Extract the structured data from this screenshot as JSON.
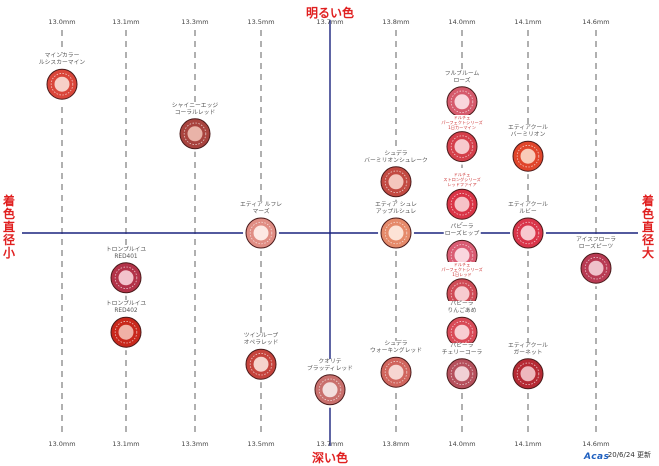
{
  "axes": {
    "top": "明るい色",
    "bottom": "深い色",
    "left": "着色直径 小",
    "right": "着色直径 大"
  },
  "footer": {
    "date": "20/6/24 更新",
    "brand": "Acas"
  },
  "colors": {
    "axis": "#1a237e",
    "accent": "#e02020",
    "dashed": "#b0b0b0"
  },
  "chart_data": {
    "type": "scatter",
    "title": "",
    "xlabel": "着色直径",
    "ylabel": "明るい色 / 深い色",
    "x_ticks": [
      "13.0mm",
      "13.1mm",
      "13.3mm",
      "13.5mm",
      "13.7mm",
      "13.8mm",
      "14.0mm",
      "14.1mm",
      "14.6mm"
    ],
    "points": [
      {
        "name": "マインカラー\nルシスカーマイン",
        "x": "13.0mm",
        "level": 0.93,
        "ring": "#d9463a",
        "center": "#f7d0c8"
      },
      {
        "name": "シャイニーエッジ\nコーラルレッド",
        "x": "13.3mm",
        "level": 0.62,
        "ring": "#a8433e",
        "center": "#e9b3a8"
      },
      {
        "name": "エティア ルフレ\nマーズ",
        "x": "13.5mm",
        "level": 0.0,
        "ring": "#e08d84",
        "center": "#fde8e4"
      },
      {
        "name": "トロンプルイユ\nRED401",
        "x": "13.1mm",
        "level": -0.28,
        "ring": "#b23248",
        "center": "#f2c3cb"
      },
      {
        "name": "トロンプルイユ\nRED402",
        "x": "13.1mm",
        "level": -0.62,
        "ring": "#c8281c",
        "center": "#f0b1a6"
      },
      {
        "name": "ツインループ\nオペラレッド",
        "x": "13.5mm",
        "level": -0.82,
        "ring": "#c5433c",
        "center": "#f6d3cc"
      },
      {
        "name": "クオリテ\nブラッディレッド",
        "x": "13.7mm",
        "level": -0.98,
        "ring": "#c9706d",
        "center": "#f3dedd"
      },
      {
        "name": "シュデラ\nバーミリオンシュレーク",
        "x": "13.8mm",
        "level": 0.32,
        "ring": "#c24a42",
        "center": "#f4c6bd"
      },
      {
        "name": "エティア シュレ\nアップルシュレ",
        "x": "13.8mm",
        "level": 0.0,
        "ring": "#e58a6a",
        "center": "#fde3d6"
      },
      {
        "name": "シュデラ\nウォーキングレッド",
        "x": "13.8mm",
        "level": -0.87,
        "ring": "#d0655d",
        "center": "#f6d6d1"
      },
      {
        "name": "フルブルーム\nローズ",
        "x": "14.0mm",
        "level": 0.82,
        "ring": "#d55a6c",
        "center": "#f9d5dc"
      },
      {
        "name": "ドルチェ\nパーフェクトシリーズ\n1日カーマイン",
        "x": "14.0mm",
        "level": 0.54,
        "ring": "#d4404b",
        "center": "#f7c9cd",
        "small": true
      },
      {
        "name": "ドルチェ\nストロングシリーズ\nレッドファイア",
        "x": "14.0mm",
        "level": 0.18,
        "ring": "#d93446",
        "center": "#f6c2c7",
        "small": true
      },
      {
        "name": "パピーラ\nローズヒップ",
        "x": "14.0mm",
        "level": -0.14,
        "ring": "#d95c73",
        "center": "#fad6de"
      },
      {
        "name": "ドルチェ\nパーフェクトシリーズ\n1日レッド",
        "x": "14.0mm",
        "level": -0.38,
        "ring": "#cf4b56",
        "center": "#f7cbd0",
        "small": true
      },
      {
        "name": "パピーラ\nりんごあめ",
        "x": "14.0mm",
        "level": -0.62,
        "ring": "#d84a57",
        "center": "#f8cdd2"
      },
      {
        "name": "パピーラ\nチェリーコーラ",
        "x": "14.0mm",
        "level": -0.88,
        "ring": "#b5505c",
        "center": "#f1d0d5"
      },
      {
        "name": "エティアクール\nバーミリオン",
        "x": "14.1mm",
        "level": 0.48,
        "ring": "#e0452a",
        "center": "#f9cbb8"
      },
      {
        "name": "エティアクール\nルビー",
        "x": "14.1mm",
        "level": 0.0,
        "ring": "#d9354a",
        "center": "#f8c8cf"
      },
      {
        "name": "エティアクール\nガーネット",
        "x": "14.1mm",
        "level": -0.88,
        "ring": "#b52a34",
        "center": "#eeb8bd"
      },
      {
        "name": "アイスフローラ\nローズピーツ",
        "x": "14.6mm",
        "level": -0.22,
        "ring": "#b83a53",
        "center": "#efc1cb"
      }
    ]
  }
}
